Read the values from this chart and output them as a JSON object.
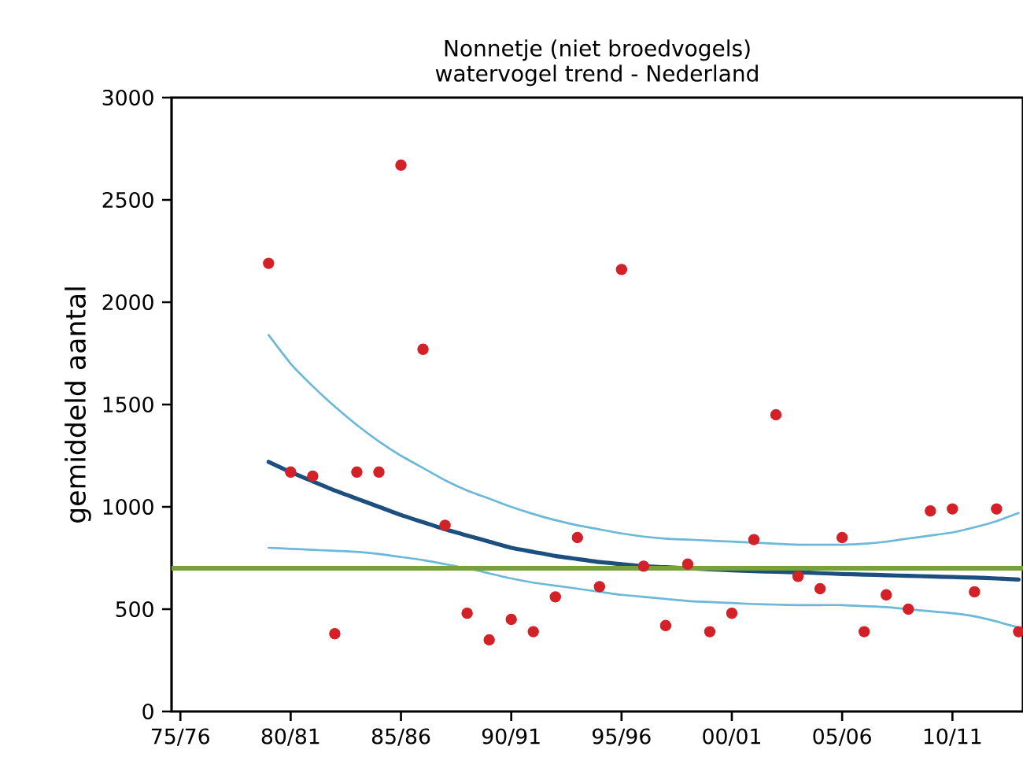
{
  "chart_data": {
    "type": "scatter",
    "title": "Nonnetje (niet broedvogels)",
    "subtitle": "watervogel trend - Nederland",
    "ylabel": "gemiddeld aantal",
    "categories": [
      "75/76",
      null,
      null,
      null,
      null,
      "80/81",
      null,
      null,
      null,
      null,
      "85/86",
      null,
      null,
      null,
      null,
      "90/91",
      null,
      null,
      null,
      null,
      "95/96",
      null,
      null,
      null,
      null,
      "00/01",
      null,
      null,
      null,
      null,
      "05/06",
      null,
      null,
      null,
      null,
      "10/11",
      null,
      null,
      null
    ],
    "ylim": [
      0,
      3000
    ],
    "yticks": [
      0,
      500,
      1000,
      1500,
      2000,
      2500,
      3000
    ],
    "ref_lines": [
      {
        "axis": "y",
        "value": 700,
        "color": "#77a23a"
      }
    ],
    "series": [
      {
        "type": "line",
        "marker": "none",
        "color": "#6bb8d8",
        "values": [
          null,
          null,
          null,
          null,
          1840,
          1700,
          1590,
          1490,
          1400,
          1320,
          1250,
          1190,
          1130,
          1080,
          1040,
          1000,
          965,
          935,
          910,
          890,
          870,
          855,
          845,
          840,
          835,
          830,
          825,
          820,
          815,
          815,
          815,
          820,
          830,
          845,
          860,
          875,
          900,
          930,
          970
        ]
      },
      {
        "type": "line",
        "marker": "none",
        "color": "#1c4f80",
        "values": [
          null,
          null,
          null,
          null,
          1220,
          1170,
          1125,
          1080,
          1040,
          1000,
          960,
          925,
          890,
          860,
          830,
          800,
          780,
          760,
          745,
          730,
          720,
          710,
          705,
          700,
          695,
          690,
          686,
          683,
          680,
          676,
          672,
          669,
          666,
          663,
          660,
          657,
          654,
          650,
          645
        ]
      },
      {
        "type": "line",
        "marker": "none",
        "color": "#6bb8d8",
        "values": [
          null,
          null,
          null,
          null,
          800,
          795,
          790,
          785,
          780,
          770,
          755,
          740,
          720,
          700,
          675,
          650,
          630,
          615,
          600,
          585,
          570,
          560,
          550,
          540,
          535,
          530,
          525,
          522,
          520,
          520,
          520,
          515,
          510,
          500,
          490,
          480,
          465,
          440,
          410
        ]
      },
      {
        "marker": "circle",
        "color": "#d42027",
        "values": [
          null,
          null,
          null,
          null,
          2190,
          1170,
          1150,
          380,
          1170,
          1170,
          2670,
          1770,
          910,
          480,
          350,
          450,
          390,
          560,
          850,
          610,
          2160,
          710,
          420,
          720,
          390,
          480,
          840,
          1450,
          660,
          600,
          850,
          390,
          570,
          500,
          980,
          990,
          585,
          990,
          390
        ]
      }
    ]
  }
}
